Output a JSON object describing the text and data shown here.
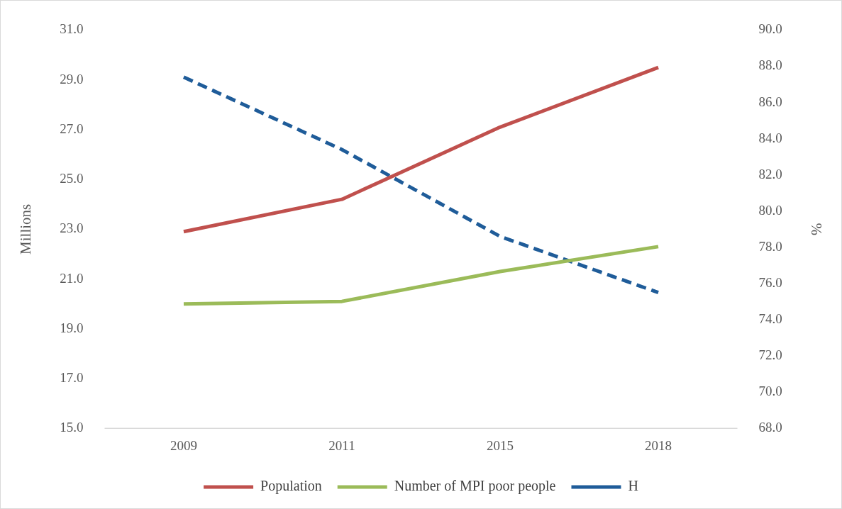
{
  "chart_data": {
    "type": "line",
    "ylabel": "Millions",
    "y2label": "%",
    "categories": [
      "2009",
      "2011",
      "2015",
      "2018"
    ],
    "series": [
      {
        "name": "Population",
        "color": "#c0504d",
        "values": [
          22.9,
          24.2,
          27.1,
          29.5
        ],
        "line_style": "solid"
      },
      {
        "name": "Number of MPI poor people",
        "color": "#9bbb59",
        "values": [
          20.0,
          20.1,
          21.3,
          22.3
        ],
        "line_style": "solid"
      },
      {
        "name": "H",
        "color": "#1f5c99",
        "values": [
          87.4,
          83.4,
          78.6,
          75.5
        ],
        "axis": "y2",
        "line_style": "dashed"
      }
    ],
    "ylim": [
      15,
      31
    ],
    "yticks": [
      {
        "value": 15,
        "label": "15.0"
      },
      {
        "value": 17,
        "label": "17.0"
      },
      {
        "value": 19,
        "label": "19.0"
      },
      {
        "value": 21,
        "label": "21.0"
      },
      {
        "value": 23,
        "label": "23.0"
      },
      {
        "value": 25,
        "label": "25.0"
      },
      {
        "value": 27,
        "label": "27.0"
      },
      {
        "value": 29,
        "label": "29.0"
      },
      {
        "value": 31,
        "label": "31.0"
      }
    ],
    "y2lim": [
      68,
      90
    ],
    "y2ticks": [
      {
        "value": 68,
        "label": "68.0"
      },
      {
        "value": 70,
        "label": "70.0"
      },
      {
        "value": 72,
        "label": "72.0"
      },
      {
        "value": 74,
        "label": "74.0"
      },
      {
        "value": 76,
        "label": "76.0"
      },
      {
        "value": 78,
        "label": "78.0"
      },
      {
        "value": 80,
        "label": "80.0"
      },
      {
        "value": 82,
        "label": "82.0"
      },
      {
        "value": 84,
        "label": "84.0"
      },
      {
        "value": 86,
        "label": "86.0"
      },
      {
        "value": 88,
        "label": "88.0"
      },
      {
        "value": 90,
        "label": "90.0"
      }
    ],
    "grid": false,
    "legend": "bottom",
    "marker": "none"
  }
}
